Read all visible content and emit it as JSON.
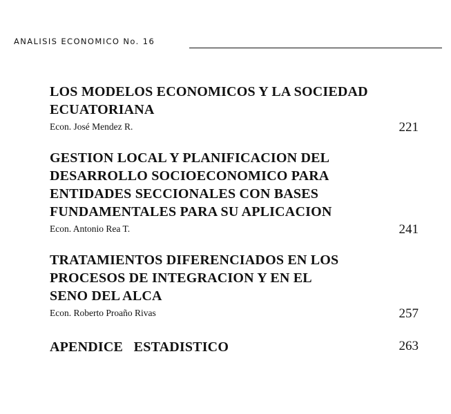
{
  "header": {
    "text": "ANALISIS ECONOMICO  No.  16"
  },
  "entries": [
    {
      "title_lines": [
        "LOS MODELOS ECONOMICOS Y LA SOCIEDAD",
        "ECUATORIANA"
      ],
      "author": "Econ. José Mendez R.",
      "page": "221"
    },
    {
      "title_lines": [
        "GESTION LOCAL Y PLANIFICACION DEL",
        "DESARROLLO SOCIOECONOMICO PARA",
        "ENTIDADES SECCIONALES CON BASES",
        "FUNDAMENTALES PARA SU APLICACION"
      ],
      "author": "Econ. Antonio Rea T.",
      "page": "241"
    },
    {
      "title_lines": [
        "TRATAMIENTOS DIFERENCIADOS EN LOS",
        "PROCESOS DE INTEGRACION Y EN EL",
        "SENO DEL ALCA"
      ],
      "author": "Econ. Roberto Proaño Rivas",
      "page": "257"
    }
  ],
  "appendix": {
    "title": "APENDICE   ESTADISTICO",
    "page": "263"
  }
}
